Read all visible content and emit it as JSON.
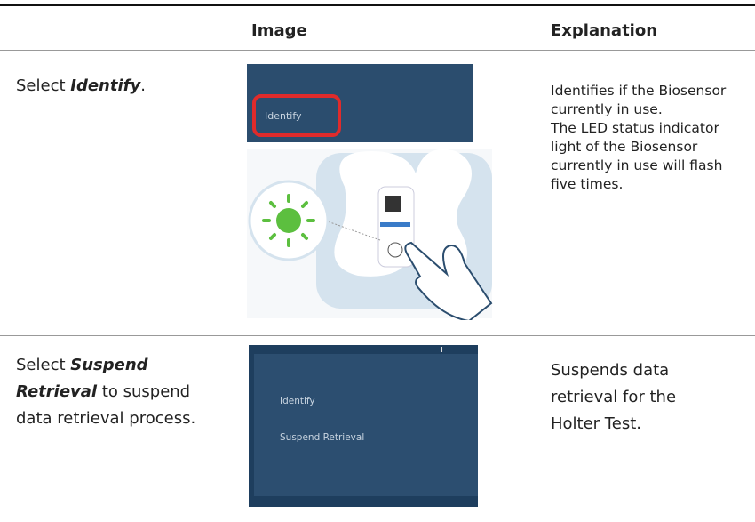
{
  "header": {
    "image": "Image",
    "explanation": "Explanation"
  },
  "rows": [
    {
      "action": {
        "prefix": "Select ",
        "emphasis": "Identify",
        "suffix": "."
      },
      "image": {
        "menu_item": "Identify"
      },
      "explanation": [
        "Identifies if the Biosensor currently in use.",
        "The LED status indicator light of the Biosensor currently in use will flash five times."
      ]
    },
    {
      "action": {
        "prefix": "Select ",
        "emphasis": "Suspend Retrieval",
        "suffix": " to suspend data retrieval process."
      },
      "image": {
        "menu_items": [
          "Identify",
          "Suspend Retrieval"
        ]
      },
      "explanation": [
        "Suspends data retrieval for the Holter Test."
      ]
    }
  ]
}
